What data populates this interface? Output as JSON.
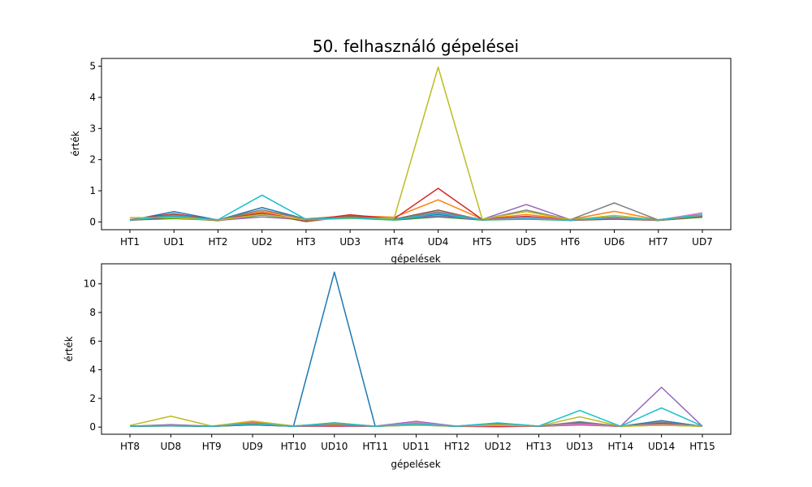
{
  "chart_data": [
    {
      "type": "line",
      "title": "50. felhasználó gépelései",
      "xlabel": "gépelések",
      "ylabel": "érték",
      "categories": [
        "HT1",
        "UD1",
        "HT2",
        "UD2",
        "HT3",
        "UD3",
        "HT4",
        "UD4",
        "HT5",
        "UD5",
        "HT6",
        "UD6",
        "HT7",
        "UD7"
      ],
      "ylim": [
        -0.25,
        5.25
      ],
      "yticks": [
        0,
        1,
        2,
        3,
        4,
        5
      ],
      "grid": false,
      "series": [
        {
          "color": "#1f77b4",
          "values": [
            0.05,
            0.33,
            0.06,
            0.46,
            0.09,
            0.17,
            0.08,
            0.24,
            0.07,
            0.13,
            0.06,
            0.16,
            0.05,
            0.18
          ]
        },
        {
          "color": "#ff7f0e",
          "values": [
            0.08,
            0.2,
            0.07,
            0.34,
            0.1,
            0.2,
            0.15,
            0.71,
            0.09,
            0.24,
            0.08,
            0.34,
            0.07,
            0.21
          ]
        },
        {
          "color": "#2ca02c",
          "values": [
            0.06,
            0.11,
            0.05,
            0.22,
            0.08,
            0.12,
            0.06,
            0.16,
            0.06,
            0.09,
            0.05,
            0.11,
            0.05,
            0.15
          ]
        },
        {
          "color": "#d62728",
          "values": [
            0.07,
            0.26,
            0.06,
            0.29,
            0.05,
            0.23,
            0.1,
            1.08,
            0.08,
            0.18,
            0.06,
            0.14,
            0.06,
            0.2
          ]
        },
        {
          "color": "#9467bd",
          "values": [
            0.06,
            0.21,
            0.05,
            0.16,
            0.07,
            0.14,
            0.09,
            0.19,
            0.08,
            0.56,
            0.07,
            0.12,
            0.06,
            0.28
          ]
        },
        {
          "color": "#8c564b",
          "values": [
            0.05,
            0.15,
            0.04,
            0.27,
            0.01,
            0.18,
            0.09,
            0.38,
            0.06,
            0.16,
            0.05,
            0.09,
            0.05,
            0.17
          ]
        },
        {
          "color": "#e377c2",
          "values": [
            0.06,
            0.18,
            0.06,
            0.24,
            0.08,
            0.15,
            0.07,
            0.33,
            0.07,
            0.14,
            0.06,
            0.13,
            0.06,
            0.29
          ]
        },
        {
          "color": "#7f7f7f",
          "values": [
            0.07,
            0.23,
            0.06,
            0.39,
            0.09,
            0.16,
            0.08,
            0.31,
            0.08,
            0.38,
            0.07,
            0.61,
            0.06,
            0.19
          ]
        },
        {
          "color": "#bcbd22",
          "values": [
            0.14,
            0.13,
            0.06,
            0.24,
            0.07,
            0.11,
            0.12,
            4.97,
            0.09,
            0.33,
            0.07,
            0.21,
            0.06,
            0.22
          ]
        },
        {
          "color": "#17becf",
          "values": [
            0.06,
            0.19,
            0.07,
            0.86,
            0.08,
            0.13,
            0.07,
            0.27,
            0.07,
            0.1,
            0.06,
            0.15,
            0.07,
            0.23
          ]
        }
      ]
    },
    {
      "type": "line",
      "title": "",
      "xlabel": "gépelések",
      "ylabel": "érték",
      "categories": [
        "HT8",
        "UD8",
        "HT9",
        "UD9",
        "HT10",
        "UD10",
        "HT11",
        "UD11",
        "HT12",
        "UD12",
        "HT13",
        "UD13",
        "HT14",
        "UD14",
        "HT15"
      ],
      "ylim": [
        -0.5,
        11.4
      ],
      "yticks": [
        0,
        2,
        4,
        6,
        8,
        10
      ],
      "grid": false,
      "series": [
        {
          "color": "#1f77b4",
          "values": [
            0.06,
            0.12,
            0.05,
            0.15,
            0.06,
            10.82,
            0.05,
            0.22,
            0.07,
            0.28,
            0.06,
            0.3,
            0.05,
            0.45,
            0.05
          ]
        },
        {
          "color": "#ff7f0e",
          "values": [
            0.07,
            0.1,
            0.06,
            0.36,
            0.07,
            0.18,
            0.06,
            0.16,
            0.06,
            0.12,
            0.06,
            0.24,
            0.05,
            0.2,
            0.06
          ]
        },
        {
          "color": "#2ca02c",
          "values": [
            0.05,
            0.08,
            0.05,
            0.18,
            0.06,
            0.3,
            0.05,
            0.14,
            0.05,
            0.1,
            0.05,
            0.18,
            0.05,
            0.14,
            0.05
          ]
        },
        {
          "color": "#d62728",
          "values": [
            0.06,
            0.11,
            0.05,
            0.21,
            0.07,
            0.05,
            0.06,
            0.25,
            0.05,
            0.03,
            0.06,
            0.22,
            0.05,
            0.3,
            0.06
          ]
        },
        {
          "color": "#9467bd",
          "values": [
            0.06,
            0.17,
            0.06,
            0.28,
            0.08,
            0.12,
            0.07,
            0.4,
            0.06,
            0.18,
            0.06,
            0.26,
            0.06,
            2.78,
            0.06
          ]
        },
        {
          "color": "#8c564b",
          "values": [
            0.05,
            0.09,
            0.05,
            0.16,
            0.06,
            0.1,
            0.06,
            0.18,
            0.05,
            0.12,
            0.05,
            0.15,
            0.05,
            0.22,
            0.05
          ]
        },
        {
          "color": "#e377c2",
          "values": [
            0.06,
            0.14,
            0.06,
            0.24,
            0.07,
            0.09,
            0.06,
            0.3,
            0.06,
            0.11,
            0.06,
            0.2,
            0.05,
            0.18,
            0.06
          ]
        },
        {
          "color": "#7f7f7f",
          "values": [
            0.06,
            0.12,
            0.06,
            0.2,
            0.07,
            0.14,
            0.06,
            0.17,
            0.06,
            0.2,
            0.06,
            0.38,
            0.05,
            0.34,
            0.06
          ]
        },
        {
          "color": "#bcbd22",
          "values": [
            0.11,
            0.76,
            0.07,
            0.42,
            0.08,
            0.26,
            0.07,
            0.12,
            0.08,
            0.15,
            0.07,
            0.72,
            0.06,
            0.12,
            0.07
          ]
        },
        {
          "color": "#17becf",
          "values": [
            0.07,
            0.1,
            0.06,
            0.22,
            0.07,
            0.28,
            0.06,
            0.21,
            0.06,
            0.29,
            0.07,
            1.16,
            0.06,
            1.34,
            0.07
          ]
        }
      ]
    }
  ]
}
